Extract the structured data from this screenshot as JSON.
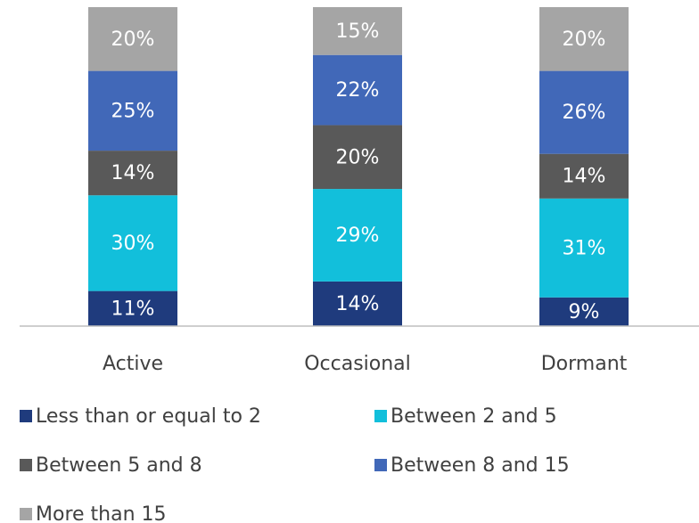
{
  "chart_data": {
    "type": "stacked_bar",
    "categories": [
      "Active",
      "Occasional",
      "Dormant"
    ],
    "ylim": [
      0,
      100
    ],
    "series": [
      {
        "name": "Less than or equal to 2",
        "color": "#1f3b7d",
        "values": [
          11,
          14,
          9
        ],
        "value_labels": [
          "11%",
          "14%",
          "9%"
        ]
      },
      {
        "name": "Between 2 and 5",
        "color": "#12bfdb",
        "values": [
          30,
          29,
          31
        ],
        "value_labels": [
          "30%",
          "29%",
          "31%"
        ]
      },
      {
        "name": "Between 5 and 8",
        "color": "#595959",
        "values": [
          14,
          20,
          14
        ],
        "value_labels": [
          "14%",
          "20%",
          "14%"
        ]
      },
      {
        "name": "Between 8 and 15",
        "color": "#4168b8",
        "values": [
          25,
          22,
          26
        ],
        "value_labels": [
          "25%",
          "22%",
          "26%"
        ]
      },
      {
        "name": "More than 15",
        "color": "#a5a5a5",
        "values": [
          20,
          15,
          20
        ],
        "value_labels": [
          "20%",
          "15%",
          "20%"
        ]
      }
    ]
  }
}
